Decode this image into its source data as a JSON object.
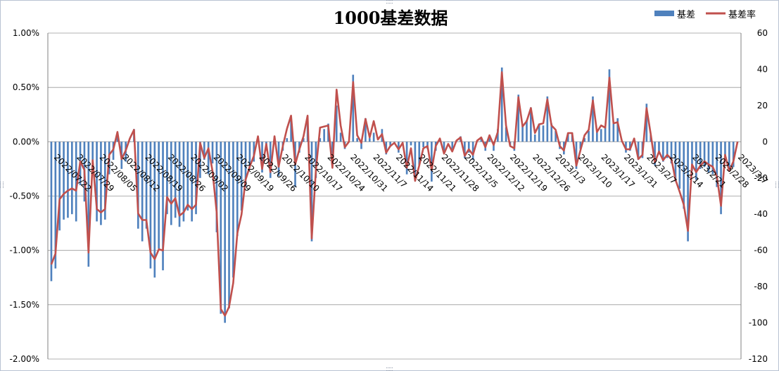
{
  "chart_data": {
    "type": "bar+line",
    "title": "1000基差数据",
    "legend": {
      "position": "top-right",
      "items": [
        {
          "name": "基差",
          "kind": "bar",
          "color": "#4f81bd"
        },
        {
          "name": "基差率",
          "kind": "line",
          "color": "#c0504d"
        }
      ]
    },
    "left_axis": {
      "series": "基差率",
      "min": -0.02,
      "max": 0.01,
      "step": 0.005,
      "tick_labels": [
        "1.00%",
        "0.50%",
        "0.00%",
        "-0.50%",
        "-1.00%",
        "-1.50%",
        "-2.00%"
      ]
    },
    "right_axis": {
      "series": "基差",
      "min": -120,
      "max": 60,
      "step": 20,
      "tick_labels": [
        "60",
        "40",
        "20",
        "0",
        "-20",
        "-40",
        "-60",
        "-80",
        "-100",
        "-120"
      ]
    },
    "x_tick_labels": [
      "2022/07/22",
      "2022/07/29",
      "2022/08/05",
      "2022/08/12",
      "2022/08/19",
      "2022/08/26",
      "2022/09/02",
      "2022/09/09",
      "2022/09/19",
      "2022/09/26",
      "2022/10/10",
      "2022/10/17",
      "2022/10/24",
      "2022/10/31",
      "2022/11/7",
      "2022/11/14",
      "2022/11/21",
      "2022/11/28",
      "2022/12/5",
      "2022/12/12",
      "2022/12/19",
      "2022/12/26",
      "2023/1/3",
      "2023/1/10",
      "2023/1/17",
      "2023/1/31",
      "2023/2/7",
      "2023/2/14",
      "2023/2/21",
      "2023/2/28",
      "2023/3/7"
    ],
    "grid": true,
    "series": [
      {
        "name": "基差",
        "axis": "right",
        "type": "bar",
        "values": [
          -77,
          -70,
          -49,
          -43,
          -42,
          -40,
          -44,
          -24,
          -33,
          -69,
          -11,
          -44,
          -46,
          -43,
          -18,
          -10,
          4,
          -15,
          -11,
          0,
          7,
          -48,
          -55,
          -48,
          -70,
          -75,
          -59,
          -71,
          -40,
          -46,
          -42,
          -47,
          -44,
          -38,
          -44,
          -40,
          -20,
          -10,
          -18,
          -12,
          -50,
          -95,
          -100,
          -92,
          -75,
          -52,
          -38,
          -25,
          -13,
          -11,
          1,
          -17,
          -5,
          -20,
          3,
          -19,
          -5,
          2,
          12,
          -25,
          -6,
          2,
          12,
          -55,
          -20,
          2,
          7,
          10,
          -13,
          20,
          5,
          -4,
          0,
          37,
          2,
          -4,
          13,
          2,
          5,
          0,
          7,
          -7,
          -2,
          0,
          -6,
          0,
          -18,
          -2,
          -20,
          -13,
          -3,
          -4,
          -22,
          -5,
          1,
          -6,
          0,
          -4,
          0,
          3,
          -9,
          -6,
          -10,
          0,
          2,
          -5,
          3,
          -5,
          7,
          41,
          8,
          -2,
          -5,
          26,
          9,
          12,
          19,
          4,
          10,
          9,
          25,
          10,
          6,
          -4,
          -7,
          5,
          5,
          -15,
          -4,
          2,
          6,
          25,
          6,
          7,
          8,
          40,
          10,
          13,
          0,
          -6,
          -5,
          2,
          -10,
          -9,
          21,
          4,
          -13,
          -7,
          -11,
          -9,
          -12,
          -22,
          -26,
          -37,
          -55,
          -16,
          -21,
          -15,
          -14,
          -17,
          -18,
          -25,
          -40,
          -8,
          -16,
          -14,
          0
        ]
      },
      {
        "name": "基差率",
        "axis": "left",
        "type": "line",
        "values": [
          -0.0113,
          -0.0103,
          -0.0053,
          -0.0048,
          -0.0045,
          -0.0043,
          -0.0045,
          -0.0018,
          -0.0026,
          -0.0102,
          -0.0017,
          -0.0062,
          -0.0065,
          -0.0062,
          -0.0012,
          -0.0007,
          0.0009,
          -0.0016,
          -0.0008,
          0.0003,
          0.0011,
          -0.0066,
          -0.0072,
          -0.0072,
          -0.0102,
          -0.0108,
          -0.0099,
          -0.01,
          -0.0051,
          -0.0057,
          -0.0052,
          -0.0068,
          -0.0065,
          -0.0058,
          -0.0062,
          -0.0058,
          -0.0001,
          -0.0015,
          -0.0006,
          -0.0027,
          -0.0065,
          -0.0154,
          -0.016,
          -0.0152,
          -0.013,
          -0.0084,
          -0.0067,
          -0.0035,
          -0.0023,
          -0.0013,
          0.0005,
          -0.0025,
          -0.0002,
          -0.0028,
          0.0005,
          -0.0023,
          -0.0004,
          0.0012,
          0.0024,
          -0.0021,
          -0.0007,
          0.0005,
          0.0024,
          -0.0089,
          -0.0026,
          0.0013,
          0.0014,
          0.0015,
          -0.0024,
          0.0048,
          0.0015,
          -0.0005,
          0,
          0.0055,
          0.0006,
          -0.0001,
          0.0021,
          0.0004,
          0.0019,
          0.0002,
          0.0007,
          -0.001,
          -0.0004,
          -0.0001,
          -0.0007,
          -0.0001,
          -0.0024,
          -0.0006,
          -0.0036,
          -0.0022,
          -0.0006,
          -0.0004,
          -0.0026,
          -0.0004,
          0.0003,
          -0.0011,
          -0.0002,
          -0.0009,
          0.0001,
          0.0004,
          -0.0013,
          -0.0007,
          -0.0012,
          0.0001,
          0.0004,
          -0.0005,
          0.0006,
          -0.0003,
          0.0009,
          0.0064,
          0.0015,
          -0.0004,
          -0.0006,
          0.0041,
          0.0014,
          0.0019,
          0.0031,
          0.0008,
          0.0016,
          0.0017,
          0.0039,
          0.0015,
          0.0011,
          -0.0004,
          -0.0008,
          0.0008,
          0.0008,
          -0.0022,
          -0.0008,
          0.0006,
          0.0011,
          0.0038,
          0.0009,
          0.0015,
          0.0013,
          0.0059,
          0.0017,
          0.0018,
          0.0001,
          -0.0007,
          -0.0007,
          0.0003,
          -0.0016,
          -0.0012,
          0.0031,
          0.0007,
          -0.0019,
          -0.0009,
          -0.0017,
          -0.0012,
          -0.0016,
          -0.0035,
          -0.0046,
          -0.0058,
          -0.0082,
          -0.0021,
          -0.0028,
          -0.0022,
          -0.0018,
          -0.0021,
          -0.0023,
          -0.0032,
          -0.0059,
          -0.0012,
          -0.0027,
          -0.0018,
          0
        ]
      }
    ]
  }
}
